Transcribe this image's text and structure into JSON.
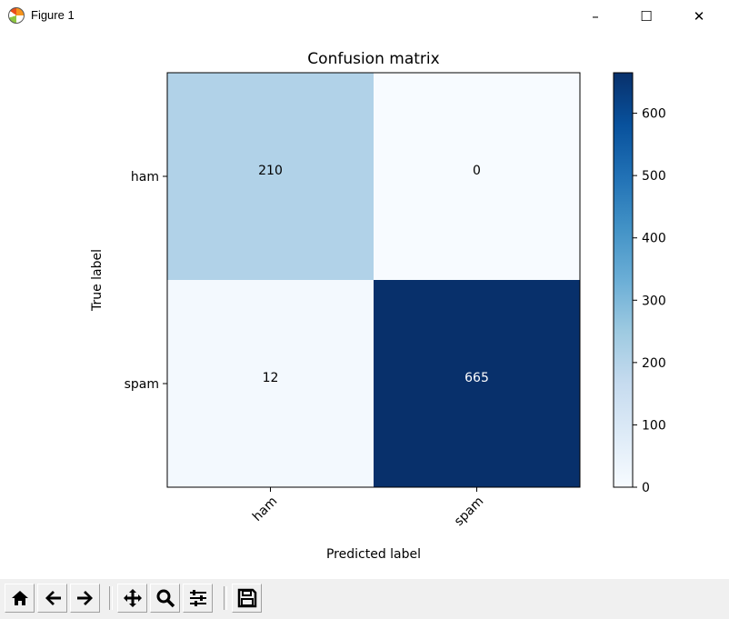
{
  "window": {
    "title": "Figure 1",
    "minimize": "–",
    "maximize": "☐",
    "close": "✕"
  },
  "toolbar": {
    "buttons": [
      {
        "name": "home-button",
        "icon": "home-icon"
      },
      {
        "name": "back-button",
        "icon": "arrow-left-icon"
      },
      {
        "name": "forward-button",
        "icon": "arrow-right-icon"
      },
      {
        "name": "pan-button",
        "icon": "move-icon"
      },
      {
        "name": "zoom-button",
        "icon": "magnifier-icon"
      },
      {
        "name": "configure-subplots-button",
        "icon": "sliders-icon"
      },
      {
        "name": "save-button",
        "icon": "floppy-disk-icon"
      }
    ]
  },
  "chart_data": {
    "type": "heatmap",
    "title": "Confusion matrix",
    "xlabel": "Predicted label",
    "ylabel": "True label",
    "x_categories": [
      "ham",
      "spam"
    ],
    "y_categories": [
      "ham",
      "spam"
    ],
    "values": [
      [
        210,
        0
      ],
      [
        12,
        665
      ]
    ],
    "value_labels": [
      [
        "210",
        "0"
      ],
      [
        "12",
        "665"
      ]
    ],
    "colormap": "Blues",
    "colorbar": {
      "range": [
        0,
        665
      ],
      "ticks": [
        0,
        100,
        200,
        300,
        400,
        500,
        600
      ],
      "tick_labels": [
        "0",
        "100",
        "200",
        "300",
        "400",
        "500",
        "600"
      ]
    },
    "colors": {
      "min": "#f7fbff",
      "max": "#08306b"
    }
  }
}
